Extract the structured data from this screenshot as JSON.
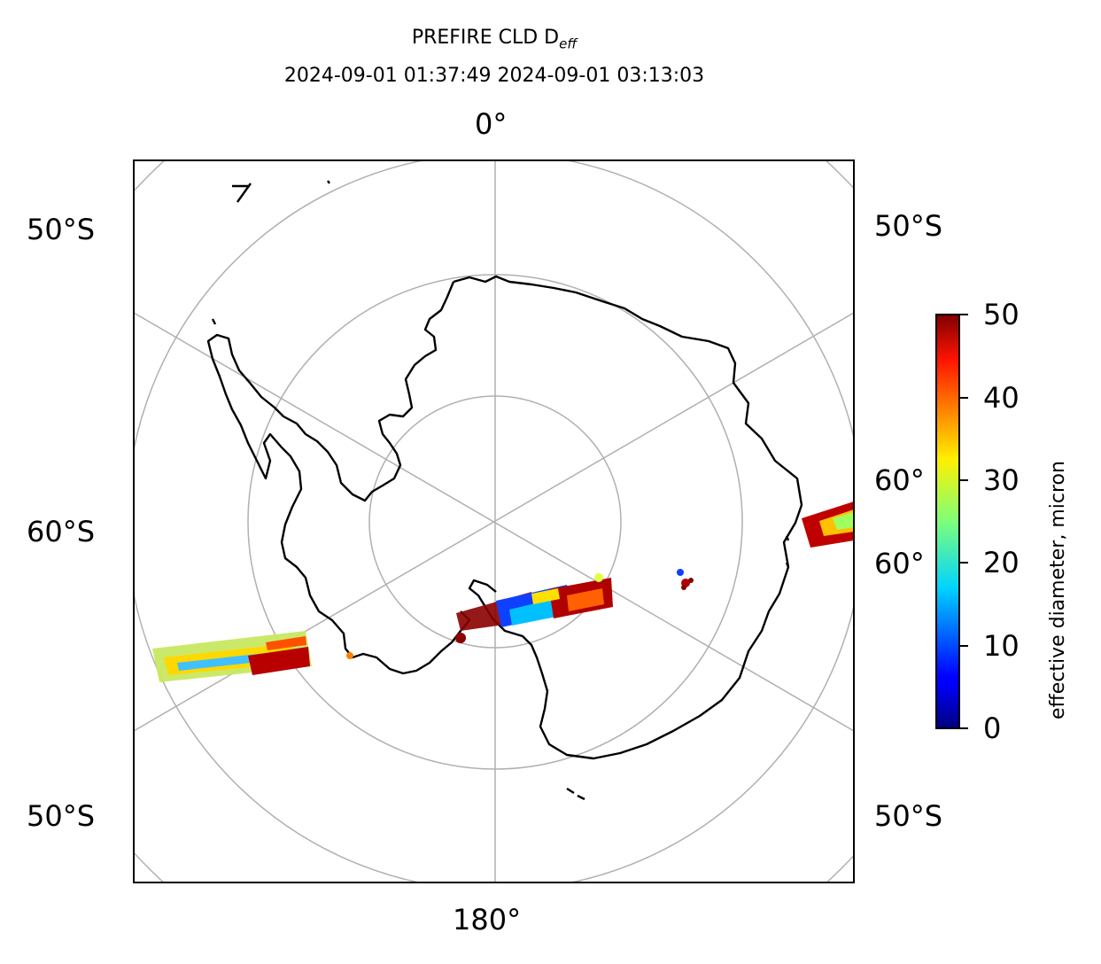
{
  "title": {
    "line1_prefix": "PREFIRE CLD D",
    "line1_sub": "eff",
    "line2": "2024-09-01 01:37:49 2024-09-01 03:13:03"
  },
  "map": {
    "projection": "south-polar-stereographic",
    "top_meridian_label": "0°",
    "bottom_meridian_label": "180°",
    "left_labels": [
      "50°S",
      "60°S",
      "50°S"
    ],
    "right_labels": [
      "50°S",
      "60°",
      "60°",
      "50°S"
    ],
    "gridline_color": "#b0b0b0",
    "coastline_color": "#000000"
  },
  "colorbar": {
    "label": "effective diameter, micron",
    "ticks": [
      "0",
      "10",
      "20",
      "30",
      "40",
      "50"
    ],
    "range": [
      0,
      50
    ],
    "colormap": "jet"
  }
}
